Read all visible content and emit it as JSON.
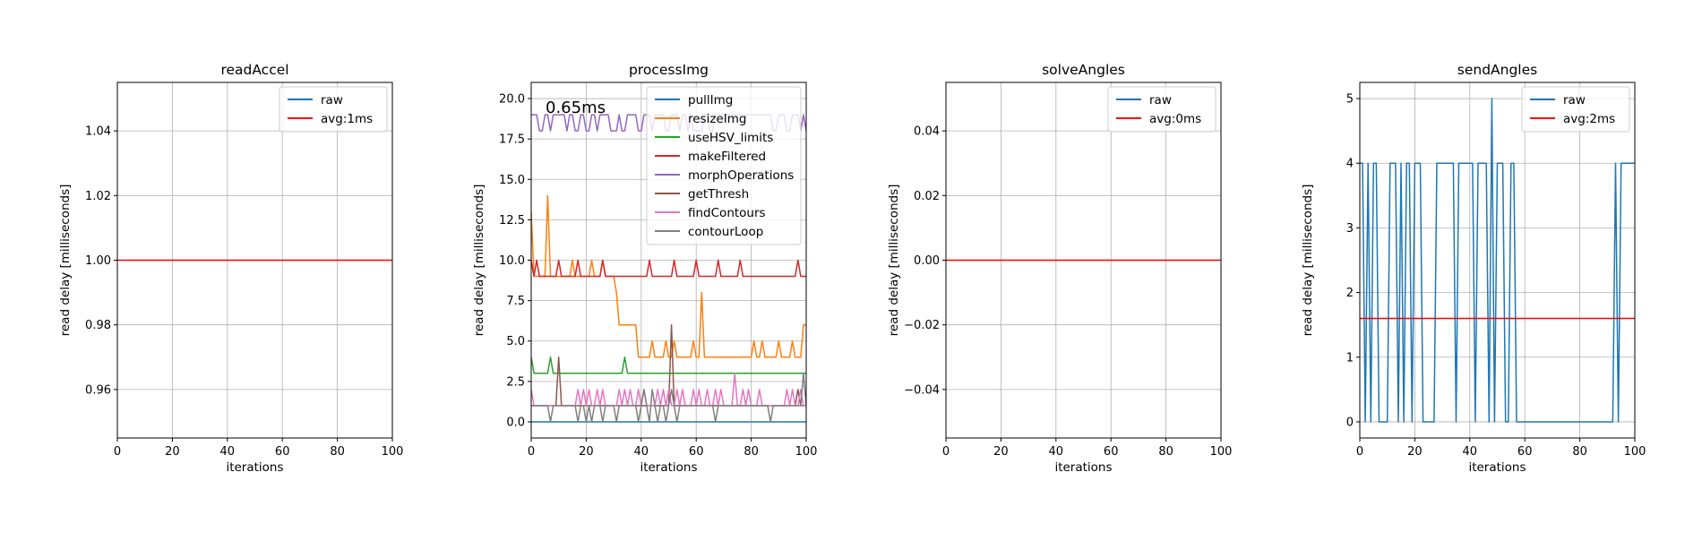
{
  "colors": {
    "blue": "#1f77b4",
    "orange": "#ff7f0e",
    "green": "#2ca02c",
    "red": "#d62728",
    "purple": "#9467bd",
    "brown": "#8c564b",
    "pink": "#e377c2",
    "gray": "#7f7f7f",
    "avg": "#ff0000",
    "grid": "#b0b0b0"
  },
  "chart_data": [
    {
      "type": "line",
      "title": "readAccel",
      "xlabel": "iterations",
      "ylabel": "read delay [milliseconds]",
      "xlim": [
        0,
        100
      ],
      "ylim": [
        0.945,
        1.055
      ],
      "xticks": [
        0,
        20,
        40,
        60,
        80,
        100
      ],
      "yticks": [
        0.96,
        0.98,
        1.0,
        1.02,
        1.04
      ],
      "ytick_labels": [
        "0.96",
        "0.98",
        "1.00",
        "1.02",
        "1.04"
      ],
      "grid": true,
      "legend": "top-right",
      "series": [
        {
          "name": "raw",
          "color": "blue",
          "x": [],
          "y": []
        },
        {
          "name": "avg:1ms",
          "color": "avg",
          "hline": 1.0
        }
      ]
    },
    {
      "type": "line",
      "title": "processImg",
      "xlabel": "iterations",
      "ylabel": "read delay [milliseconds]",
      "xlim": [
        0,
        100
      ],
      "ylim": [
        -1,
        21
      ],
      "xticks": [
        0,
        20,
        40,
        60,
        80,
        100
      ],
      "yticks": [
        0,
        2.5,
        5,
        7.5,
        10,
        12.5,
        15,
        17.5,
        20
      ],
      "ytick_labels": [
        "0.0",
        "2.5",
        "5.0",
        "7.5",
        "10.0",
        "12.5",
        "15.0",
        "17.5",
        "20.0"
      ],
      "grid": true,
      "legend": "top-right",
      "annotation": "0.65ms",
      "series": [
        {
          "name": "pullImg",
          "color": "blue",
          "y": [
            0,
            0,
            0,
            0,
            0,
            0,
            0,
            0,
            0,
            0,
            0,
            0,
            0,
            0,
            0,
            0,
            0,
            0,
            0,
            0,
            0,
            0,
            0,
            0,
            0,
            0,
            0,
            0,
            0,
            0,
            0,
            0,
            0,
            0,
            0,
            0,
            0,
            0,
            0,
            0,
            0,
            0,
            0,
            0,
            0,
            0,
            0,
            0,
            0,
            0,
            0,
            0,
            0,
            0,
            0,
            0,
            0,
            0,
            0,
            0,
            0,
            0,
            0,
            0,
            0,
            0,
            0,
            0,
            0,
            0,
            0,
            0,
            0,
            0,
            0,
            0,
            0,
            0,
            0,
            0,
            0,
            0,
            0,
            0,
            0,
            0,
            0,
            0,
            0,
            0,
            0,
            0,
            0,
            0,
            0,
            0,
            0,
            0,
            0,
            0,
            0
          ]
        },
        {
          "name": "resizeImg",
          "color": "orange",
          "y": [
            13,
            9,
            9,
            9,
            9,
            9,
            14,
            9,
            9,
            9,
            9,
            9,
            9,
            9,
            9,
            10,
            9,
            9,
            9,
            9,
            9,
            9,
            10,
            9,
            9,
            9,
            10,
            9,
            9,
            9,
            9,
            8,
            6,
            6,
            6,
            6,
            6,
            6,
            6,
            4,
            4,
            4,
            4,
            4,
            5,
            4,
            4,
            4,
            4,
            5,
            4,
            4,
            5,
            4,
            4,
            4,
            4,
            4,
            4,
            5,
            4,
            4,
            8,
            4,
            4,
            4,
            4,
            4,
            4,
            4,
            4,
            4,
            4,
            4,
            4,
            4,
            4,
            4,
            4,
            4,
            4,
            5,
            4,
            4,
            5,
            4,
            4,
            4,
            4,
            4,
            5,
            4,
            4,
            4,
            4,
            5,
            4,
            4,
            4,
            6,
            6
          ]
        },
        {
          "name": "useHSV_limits",
          "color": "green",
          "y": [
            4,
            3,
            3,
            3,
            3,
            3,
            3,
            4,
            3,
            3,
            3,
            3,
            3,
            3,
            3,
            3,
            3,
            3,
            3,
            3,
            3,
            3,
            3,
            3,
            3,
            3,
            3,
            3,
            3,
            3,
            3,
            3,
            3,
            3,
            4,
            3,
            3,
            3,
            3,
            3,
            3,
            3,
            3,
            3,
            3,
            3,
            3,
            3,
            3,
            3,
            3,
            3,
            3,
            3,
            3,
            3,
            3,
            3,
            3,
            3,
            3,
            3,
            3,
            3,
            3,
            3,
            3,
            3,
            3,
            3,
            3,
            3,
            3,
            3,
            3,
            3,
            3,
            3,
            3,
            3,
            3,
            3,
            3,
            3,
            3,
            3,
            3,
            3,
            3,
            3,
            3,
            3,
            3,
            3,
            3,
            3,
            3,
            3,
            3,
            3,
            3
          ]
        },
        {
          "name": "makeFiltered",
          "color": "red",
          "y": [
            10,
            9,
            10,
            9,
            9,
            9,
            9,
            9,
            9,
            9,
            10,
            9,
            9,
            9,
            9,
            9,
            9,
            10,
            9,
            9,
            9,
            9,
            9,
            9,
            9,
            9,
            10,
            9,
            9,
            9,
            9,
            9,
            9,
            9,
            9,
            9,
            9,
            9,
            9,
            9,
            9,
            9,
            9,
            10,
            9,
            9,
            9,
            9,
            9,
            9,
            9,
            9,
            10,
            9,
            9,
            9,
            9,
            9,
            9,
            9,
            10,
            9,
            9,
            9,
            9,
            9,
            9,
            9,
            10,
            9,
            9,
            9,
            9,
            9,
            9,
            9,
            10,
            9,
            9,
            9,
            9,
            9,
            9,
            9,
            9,
            9,
            9,
            9,
            9,
            9,
            9,
            9,
            9,
            9,
            9,
            9,
            9,
            10,
            9,
            9,
            9
          ]
        },
        {
          "name": "morphOperations",
          "color": "purple",
          "y": [
            19,
            19,
            19,
            18,
            18,
            19,
            19,
            18,
            19,
            19,
            19,
            19,
            19,
            18,
            19,
            19,
            18,
            18,
            19,
            19,
            18,
            18,
            19,
            19,
            18,
            19,
            19,
            19,
            19,
            18,
            18,
            18,
            19,
            18,
            18,
            19,
            19,
            19,
            19,
            18,
            18,
            19,
            19,
            19,
            18,
            19,
            19,
            19,
            19,
            18,
            18,
            19,
            19,
            19,
            18,
            19,
            19,
            18,
            19,
            18,
            18,
            18,
            18,
            19,
            19,
            18,
            18,
            19,
            19,
            19,
            19,
            19,
            19,
            19,
            19,
            19,
            19,
            19,
            19,
            19,
            19,
            19,
            19,
            19,
            19,
            19,
            19,
            19,
            18,
            18,
            19,
            19,
            19,
            18,
            18,
            19,
            19,
            19,
            18,
            19,
            18
          ]
        },
        {
          "name": "getThresh",
          "color": "brown",
          "y": [
            1,
            1,
            1,
            1,
            1,
            1,
            1,
            1,
            1,
            1,
            4,
            1,
            1,
            1,
            1,
            1,
            1,
            1,
            1,
            1,
            1,
            1,
            1,
            1,
            1,
            1,
            1,
            1,
            1,
            1,
            1,
            1,
            1,
            1,
            1,
            1,
            1,
            1,
            1,
            1,
            1,
            1,
            1,
            1,
            1,
            1,
            1,
            1,
            1,
            1,
            1,
            6,
            1,
            1,
            1,
            1,
            1,
            1,
            1,
            1,
            1,
            1,
            1,
            1,
            1,
            1,
            1,
            1,
            1,
            1,
            1,
            1,
            1,
            1,
            1,
            1,
            1,
            1,
            1,
            1,
            1,
            1,
            1,
            1,
            1,
            1,
            1,
            1,
            1,
            1,
            1,
            1,
            1,
            1,
            1,
            1,
            1,
            2,
            1,
            1,
            1
          ]
        },
        {
          "name": "findContours",
          "color": "pink",
          "y": [
            2,
            1,
            1,
            1,
            1,
            1,
            1,
            1,
            1,
            1,
            1,
            1,
            1,
            1,
            1,
            1,
            1,
            2,
            1,
            2,
            1,
            2,
            1,
            1,
            2,
            1,
            2,
            1,
            1,
            1,
            1,
            1,
            2,
            1,
            2,
            1,
            2,
            1,
            1,
            2,
            1,
            2,
            1,
            1,
            1,
            1,
            2,
            1,
            2,
            1,
            2,
            1,
            1,
            2,
            1,
            2,
            1,
            1,
            1,
            2,
            1,
            2,
            1,
            1,
            2,
            1,
            1,
            2,
            1,
            2,
            1,
            1,
            1,
            1,
            3,
            1,
            1,
            2,
            1,
            2,
            1,
            1,
            1,
            2,
            1,
            1,
            1,
            1,
            1,
            1,
            1,
            1,
            1,
            2,
            1,
            2,
            1,
            1,
            2,
            1,
            1
          ]
        },
        {
          "name": "contourLoop",
          "color": "gray",
          "y": [
            1,
            1,
            1,
            1,
            1,
            1,
            1,
            0,
            1,
            1,
            1,
            1,
            1,
            1,
            1,
            1,
            1,
            0,
            1,
            1,
            0,
            1,
            0,
            1,
            1,
            1,
            0,
            1,
            1,
            1,
            1,
            0,
            1,
            1,
            1,
            1,
            1,
            1,
            1,
            0,
            1,
            2,
            1,
            0,
            2,
            1,
            0,
            1,
            1,
            0,
            1,
            2,
            1,
            0,
            1,
            1,
            1,
            1,
            1,
            1,
            1,
            1,
            1,
            1,
            1,
            1,
            1,
            0,
            1,
            1,
            1,
            1,
            1,
            1,
            1,
            1,
            1,
            1,
            1,
            1,
            1,
            1,
            1,
            1,
            1,
            1,
            1,
            0,
            1,
            1,
            1,
            1,
            1,
            1,
            1,
            1,
            1,
            1,
            1,
            3,
            1
          ]
        }
      ]
    },
    {
      "type": "line",
      "title": "solveAngles",
      "xlabel": "iterations",
      "ylabel": "read delay [milliseconds]",
      "xlim": [
        0,
        100
      ],
      "ylim": [
        -0.055,
        0.055
      ],
      "xticks": [
        0,
        20,
        40,
        60,
        80,
        100
      ],
      "yticks": [
        -0.04,
        -0.02,
        0.0,
        0.02,
        0.04
      ],
      "ytick_labels": [
        "−0.04",
        "−0.02",
        "0.00",
        "0.02",
        "0.04"
      ],
      "grid": true,
      "legend": "top-right",
      "series": [
        {
          "name": "raw",
          "color": "blue",
          "x": [],
          "y": []
        },
        {
          "name": "avg:0ms",
          "color": "avg",
          "hline": 0.0
        }
      ]
    },
    {
      "type": "line",
      "title": "sendAngles",
      "xlabel": "iterations",
      "ylabel": "read delay [milliseconds]",
      "xlim": [
        0,
        100
      ],
      "ylim": [
        -0.25,
        5.25
      ],
      "xticks": [
        0,
        20,
        40,
        60,
        80,
        100
      ],
      "yticks": [
        0,
        1,
        2,
        3,
        4,
        5
      ],
      "ytick_labels": [
        "0",
        "1",
        "2",
        "3",
        "4",
        "5"
      ],
      "grid": true,
      "legend": "top-right",
      "series": [
        {
          "name": "raw",
          "color": "blue",
          "y": [
            4,
            4,
            0,
            4,
            0,
            4,
            4,
            0,
            0,
            0,
            0,
            4,
            4,
            4,
            0,
            4,
            0,
            4,
            4,
            0,
            4,
            4,
            4,
            0,
            0,
            0,
            0,
            0,
            4,
            4,
            4,
            4,
            4,
            4,
            4,
            0,
            4,
            4,
            4,
            4,
            4,
            4,
            0,
            4,
            4,
            4,
            4,
            0,
            5,
            0,
            4,
            4,
            4,
            0,
            0,
            4,
            4,
            0,
            0,
            0,
            0,
            0,
            0,
            0,
            0,
            0,
            0,
            0,
            0,
            0,
            0,
            0,
            0,
            0,
            0,
            0,
            0,
            0,
            0,
            0,
            0,
            0,
            0,
            0,
            0,
            0,
            0,
            0,
            0,
            0,
            0,
            0,
            0,
            4,
            0,
            4,
            4,
            4,
            4,
            4,
            4
          ]
        },
        {
          "name": "avg:2ms",
          "color": "avg",
          "hline": 1.6
        }
      ]
    }
  ]
}
